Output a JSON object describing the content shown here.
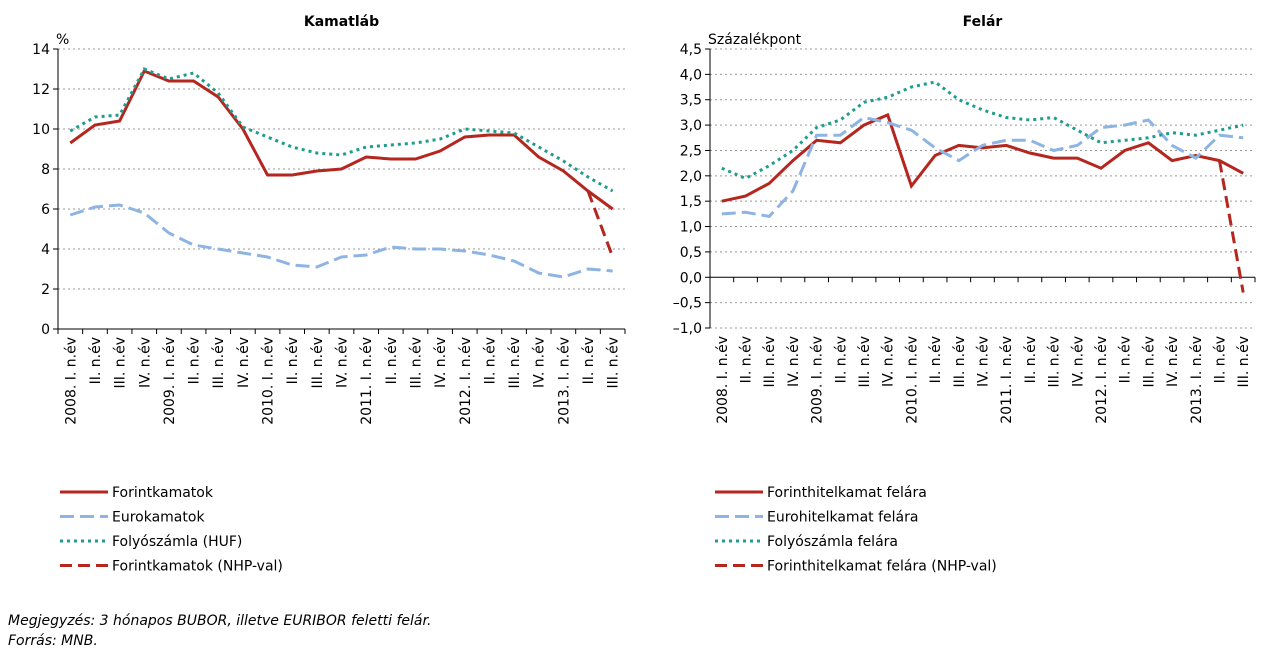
{
  "chart_data": [
    {
      "type": "line",
      "title": "Kamatláb",
      "y_label": "%",
      "categories": [
        "2008. I. n.év",
        "II. n.év",
        "III. n.év",
        "IV. n.év",
        "2009. I. n.év",
        "II. n.év",
        "III. n.év",
        "IV. n.év",
        "2010. I. n.év",
        "II. n.év",
        "III. n.év",
        "IV. n.év",
        "2011. I. n.év",
        "II. n.év",
        "III. n.év",
        "IV. n.év",
        "2012. I. n.év",
        "II. n.év",
        "III. n.év",
        "IV. n.év",
        "2013. I. n.év",
        "II. n.év",
        "III. n.év"
      ],
      "ylim": [
        0,
        14
      ],
      "yticks": [
        0,
        2,
        4,
        6,
        8,
        10,
        12,
        14
      ],
      "grid": true,
      "series": [
        {
          "name": "Forintkamatok",
          "color": "#b5261e",
          "dash": "solid",
          "values": [
            9.3,
            10.2,
            10.4,
            12.9,
            12.4,
            12.4,
            11.6,
            10.0,
            7.7,
            7.7,
            7.9,
            8.0,
            8.6,
            8.5,
            8.5,
            8.9,
            9.6,
            9.7,
            9.7,
            8.6,
            7.9,
            6.9,
            6.0
          ]
        },
        {
          "name": "Eurokamatok",
          "color": "#8db4e2",
          "dash": "dashed",
          "values": [
            5.7,
            6.1,
            6.2,
            5.8,
            4.8,
            4.2,
            4.0,
            3.8,
            3.6,
            3.2,
            3.1,
            3.6,
            3.7,
            4.1,
            4.0,
            4.0,
            3.9,
            3.7,
            3.4,
            2.8,
            2.6,
            3.0,
            2.9
          ]
        },
        {
          "name": "Folyószámla (HUF)",
          "color": "#1e9c8c",
          "dash": "dotted",
          "values": [
            9.9,
            10.6,
            10.7,
            13.0,
            12.5,
            12.8,
            11.8,
            10.1,
            9.6,
            9.1,
            8.8,
            8.7,
            9.1,
            9.2,
            9.3,
            9.5,
            10.0,
            9.9,
            9.8,
            9.1,
            8.4,
            7.6,
            6.9
          ]
        },
        {
          "name": "Forintkamatok (NHP-val)",
          "color": "#b5261e",
          "dash": "longdash",
          "values": [
            null,
            null,
            null,
            null,
            null,
            null,
            null,
            null,
            null,
            null,
            null,
            null,
            null,
            null,
            null,
            null,
            null,
            null,
            null,
            null,
            null,
            6.9,
            3.6
          ]
        }
      ]
    },
    {
      "type": "line",
      "title": "Felár",
      "y_label": "Százalékpont",
      "categories": [
        "2008. I. n.év",
        "II. n.év",
        "III. n.év",
        "IV. n.év",
        "2009. I. n.év",
        "II. n.év",
        "III. n.év",
        "IV. n.év",
        "2010. I. n.év",
        "II. n.év",
        "III. n.év",
        "IV. n.év",
        "2011. I. n.év",
        "II. n.év",
        "III. n.év",
        "IV. n.év",
        "2012. I. n.év",
        "II. n.év",
        "III. n.év",
        "IV. n.év",
        "2013. I. n.év",
        "II. n.év",
        "III. n.év"
      ],
      "ylim": [
        -1,
        4.5
      ],
      "yticks": [
        {
          "value": -1,
          "label": "–1,0"
        },
        {
          "value": -0.5,
          "label": "–0,5"
        },
        {
          "value": 0,
          "label": "0,0"
        },
        {
          "value": 0.5,
          "label": "0,5"
        },
        {
          "value": 1,
          "label": "1,0"
        },
        {
          "value": 1.5,
          "label": "1,5"
        },
        {
          "value": 2,
          "label": "2,0"
        },
        {
          "value": 2.5,
          "label": "2,5"
        },
        {
          "value": 3,
          "label": "3,0"
        },
        {
          "value": 3.5,
          "label": "3,5"
        },
        {
          "value": 4,
          "label": "4,0"
        },
        {
          "value": 4.5,
          "label": "4,5"
        }
      ],
      "grid": true,
      "series": [
        {
          "name": "Forinthitelkamat felára",
          "color": "#b5261e",
          "dash": "solid",
          "values": [
            1.5,
            1.6,
            1.85,
            2.3,
            2.7,
            2.65,
            3.0,
            3.2,
            1.8,
            2.4,
            2.6,
            2.55,
            2.6,
            2.45,
            2.35,
            2.35,
            2.15,
            2.5,
            2.65,
            2.3,
            2.4,
            2.3,
            2.05
          ]
        },
        {
          "name": "Eurohitelkamat felára",
          "color": "#8db4e2",
          "dash": "dashed",
          "values": [
            1.25,
            1.28,
            1.2,
            1.7,
            2.8,
            2.8,
            3.15,
            3.05,
            2.9,
            2.55,
            2.3,
            2.6,
            2.7,
            2.7,
            2.5,
            2.6,
            2.95,
            3.0,
            3.1,
            2.6,
            2.35,
            2.8,
            2.75
          ]
        },
        {
          "name": "Folyószámla felára",
          "color": "#1e9c8c",
          "dash": "dotted",
          "values": [
            2.15,
            1.95,
            2.2,
            2.5,
            2.95,
            3.1,
            3.45,
            3.55,
            3.75,
            3.85,
            3.5,
            3.3,
            3.15,
            3.1,
            3.15,
            2.9,
            2.65,
            2.7,
            2.75,
            2.85,
            2.8,
            2.9,
            3.0
          ]
        },
        {
          "name": "Forinthitelkamat felára (NHP-val)",
          "color": "#b5261e",
          "dash": "longdash",
          "values": [
            null,
            null,
            null,
            null,
            null,
            null,
            null,
            null,
            null,
            null,
            null,
            null,
            null,
            null,
            null,
            null,
            null,
            null,
            null,
            null,
            null,
            2.3,
            -0.3
          ]
        }
      ]
    }
  ],
  "note": "Megjegyzés: 3 hónapos BUBOR, illetve EURIBOR feletti felár.",
  "source": "Forrás: MNB."
}
